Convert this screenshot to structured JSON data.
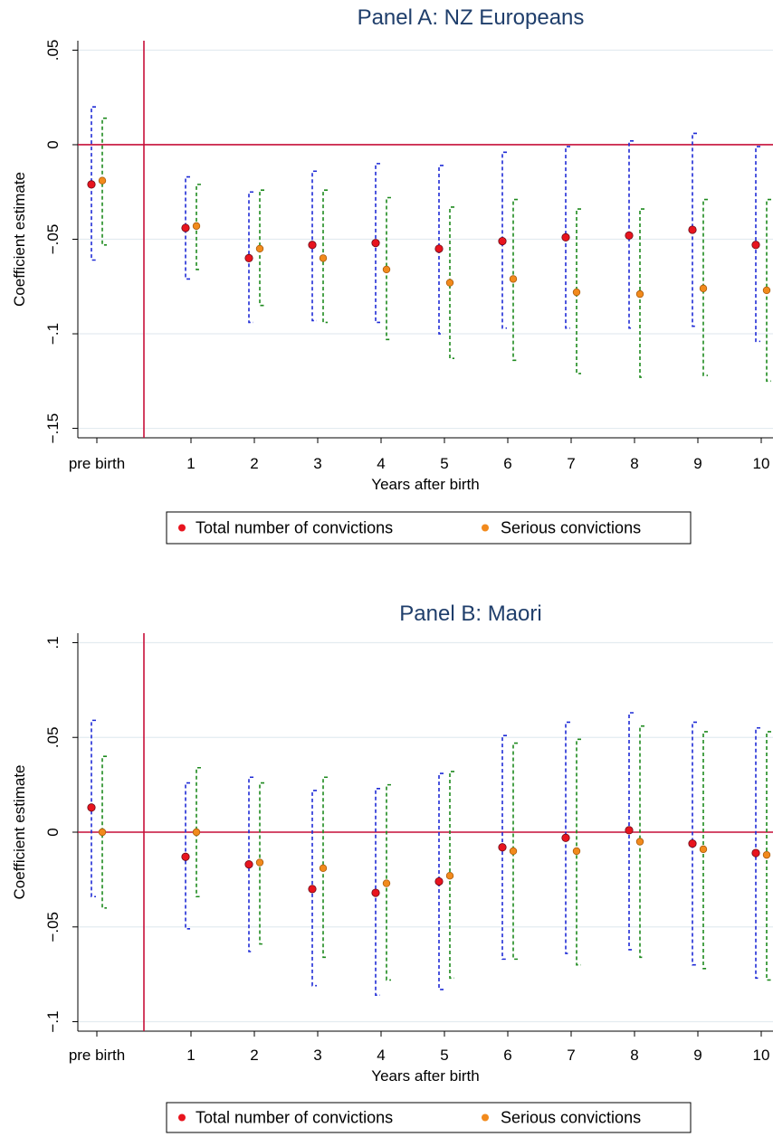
{
  "chart_data": [
    {
      "type": "scatter",
      "title": "Panel A: NZ Europeans",
      "xlabel": "Years after birth",
      "ylabel": "Coefficient estimate",
      "categories": [
        "pre birth",
        "1",
        "2",
        "3",
        "4",
        "5",
        "6",
        "7",
        "8",
        "9",
        "10"
      ],
      "y_ticks": [
        0.05,
        0,
        -0.05,
        -0.1,
        -0.15
      ],
      "y_tick_labels": [
        ".05",
        "0",
        "−.05",
        "−.1",
        "−.15"
      ],
      "ylim": [
        -0.155,
        0.055
      ],
      "reference_line_y": 0,
      "reference_line_x": "between pre birth and 1",
      "grid": true,
      "series": [
        {
          "name": "Total number of convictions",
          "color": "#e8141e",
          "ci_color": "#1f2bd6",
          "values": [
            -0.021,
            -0.044,
            -0.06,
            -0.053,
            -0.052,
            -0.055,
            -0.051,
            -0.049,
            -0.048,
            -0.045,
            -0.053
          ],
          "ci_low": [
            -0.061,
            -0.071,
            -0.094,
            -0.093,
            -0.094,
            -0.1,
            -0.097,
            -0.097,
            -0.097,
            -0.096,
            -0.104
          ],
          "ci_high": [
            0.02,
            -0.017,
            -0.025,
            -0.014,
            -0.01,
            -0.011,
            -0.004,
            -0.001,
            0.002,
            0.006,
            -0.001
          ]
        },
        {
          "name": "Serious convictions",
          "color": "#f28a1c",
          "ci_color": "#1e8a1e",
          "values": [
            -0.019,
            -0.043,
            -0.055,
            -0.06,
            -0.066,
            -0.073,
            -0.071,
            -0.078,
            -0.079,
            -0.076,
            -0.077
          ],
          "ci_low": [
            -0.053,
            -0.066,
            -0.085,
            -0.094,
            -0.103,
            -0.113,
            -0.114,
            -0.121,
            -0.123,
            -0.122,
            -0.125
          ],
          "ci_high": [
            0.014,
            -0.021,
            -0.024,
            -0.024,
            -0.028,
            -0.033,
            -0.029,
            -0.034,
            -0.034,
            -0.029,
            -0.029
          ]
        }
      ],
      "legend": {
        "position": "bottom",
        "entries": [
          "Total number of convictions",
          "Serious convictions"
        ]
      }
    },
    {
      "type": "scatter",
      "title": "Panel B: Maori",
      "xlabel": "Years after birth",
      "ylabel": "Coefficient estimate",
      "categories": [
        "pre birth",
        "1",
        "2",
        "3",
        "4",
        "5",
        "6",
        "7",
        "8",
        "9",
        "10"
      ],
      "y_ticks": [
        0.1,
        0.05,
        0,
        -0.05,
        -0.1
      ],
      "y_tick_labels": [
        ".1",
        ".05",
        "0",
        "−.05",
        "−.1"
      ],
      "ylim": [
        -0.105,
        0.105
      ],
      "reference_line_y": 0,
      "reference_line_x": "between pre birth and 1",
      "grid": true,
      "series": [
        {
          "name": "Total number of convictions",
          "color": "#e8141e",
          "ci_color": "#1f2bd6",
          "values": [
            0.013,
            -0.013,
            -0.017,
            -0.03,
            -0.032,
            -0.026,
            -0.008,
            -0.003,
            0.001,
            -0.006,
            -0.011
          ],
          "ci_low": [
            -0.034,
            -0.051,
            -0.063,
            -0.081,
            -0.086,
            -0.083,
            -0.067,
            -0.064,
            -0.062,
            -0.07,
            -0.077
          ],
          "ci_high": [
            0.059,
            0.026,
            0.029,
            0.022,
            0.023,
            0.031,
            0.051,
            0.058,
            0.063,
            0.058,
            0.055
          ]
        },
        {
          "name": "Serious convictions",
          "color": "#f28a1c",
          "ci_color": "#1e8a1e",
          "values": [
            0.0,
            0.0,
            -0.016,
            -0.019,
            -0.027,
            -0.023,
            -0.01,
            -0.01,
            -0.005,
            -0.009,
            -0.012
          ],
          "ci_low": [
            -0.04,
            -0.034,
            -0.059,
            -0.066,
            -0.078,
            -0.077,
            -0.067,
            -0.07,
            -0.066,
            -0.072,
            -0.078
          ],
          "ci_high": [
            0.04,
            0.034,
            0.026,
            0.029,
            0.025,
            0.032,
            0.047,
            0.049,
            0.056,
            0.053,
            0.053
          ]
        }
      ],
      "legend": {
        "position": "bottom",
        "entries": [
          "Total number of convictions",
          "Serious convictions"
        ]
      }
    }
  ]
}
